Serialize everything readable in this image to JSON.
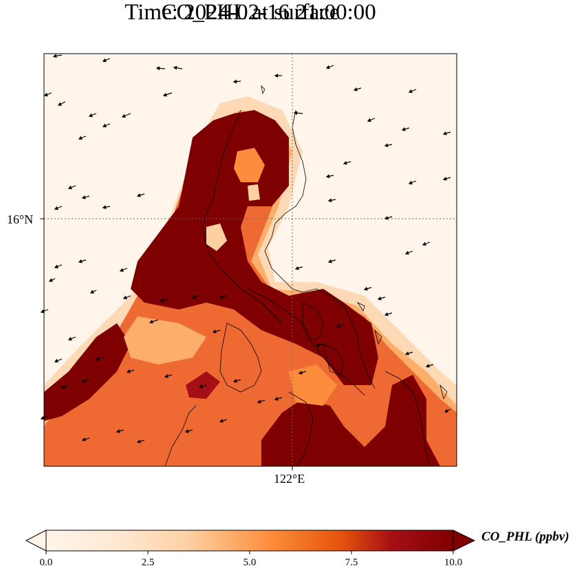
{
  "title_line1": "CO_PHL at surface",
  "title_line2": "Time: 2024-02-16 21:00:00",
  "lat_tick": "16°N",
  "lon_tick": "122°E",
  "colorbar": {
    "label": "CO_PHL (ppbv)",
    "ticks": [
      "0.0",
      "2.5",
      "5.0",
      "7.5",
      "10.0"
    ],
    "min": 0,
    "max": 10,
    "extend": "both",
    "colormap": [
      "#fff5eb",
      "#fdd0a2",
      "#fd8d3c",
      "#d94801",
      "#a50f15",
      "#7f0000"
    ]
  },
  "map": {
    "background_color": "#fff5eb",
    "high_color": "#7f0000",
    "gridlines": "dotted",
    "features": [
      "coastlines",
      "wind-vectors",
      "concentration-field"
    ]
  }
}
